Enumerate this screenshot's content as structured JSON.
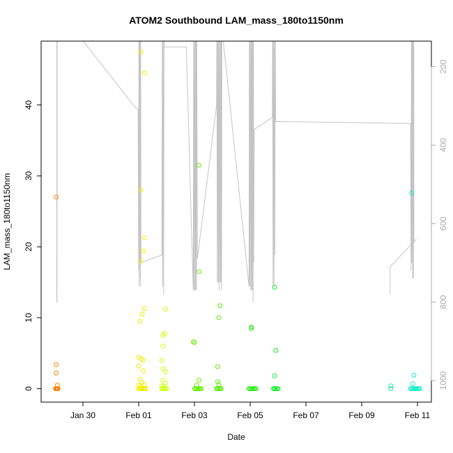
{
  "chart_data": {
    "type": "scatter",
    "title": "ATOM2 Southbound LAM_mass_180to1150nm",
    "xlabel": "Date",
    "ylabel": "LAM_mass_180to1150nm",
    "xlim": [
      "2017-01-28T12:00",
      "2017-02-11T12:00"
    ],
    "ylim": [
      -1.9,
      49
    ],
    "x_ticks": [
      {
        "date": "2017-01-30",
        "label": "Jan 30"
      },
      {
        "date": "2017-02-01",
        "label": "Feb 01"
      },
      {
        "date": "2017-02-03",
        "label": "Feb 03"
      },
      {
        "date": "2017-02-05",
        "label": "Feb 05"
      },
      {
        "date": "2017-02-07",
        "label": "Feb 07"
      },
      {
        "date": "2017-02-09",
        "label": "Feb 09"
      },
      {
        "date": "2017-02-11",
        "label": "Feb 11"
      }
    ],
    "y_ticks": [
      0,
      10,
      20,
      30,
      40
    ],
    "y2_ticks": [
      200,
      400,
      600,
      800,
      1000
    ],
    "y2_lim": [
      135,
      1055
    ],
    "y2_reversed": true,
    "y2_color": "#aaaaaa",
    "grid": false,
    "series": [
      {
        "color": "#ff7f00",
        "points": [
          [
            "2017-01-29T01:00",
            27.0
          ],
          [
            "2017-01-29T01:00",
            3.4
          ],
          [
            "2017-01-29T01:00",
            2.2
          ],
          [
            "2017-01-29T02:00",
            0.5
          ],
          [
            "2017-01-29T00:30",
            0.0
          ],
          [
            "2017-01-29T01:00",
            0.0
          ],
          [
            "2017-01-29T01:30",
            0.0
          ],
          [
            "2017-01-29T02:00",
            0.0
          ],
          [
            "2017-01-29T02:30",
            0.0
          ]
        ]
      },
      {
        "color": "#eeee00",
        "points": [
          [
            "2017-02-01T02:00",
            47.5
          ],
          [
            "2017-02-01T05:00",
            44.5
          ],
          [
            "2017-02-01T02:00",
            28.0
          ],
          [
            "2017-02-01T05:00",
            21.3
          ],
          [
            "2017-02-01T04:00",
            19.4
          ],
          [
            "2017-02-01T02:00",
            18.0
          ],
          [
            "2017-02-01T05:00",
            11.3
          ],
          [
            "2017-02-01T03:00",
            10.5
          ],
          [
            "2017-02-01T01:00",
            9.5
          ],
          [
            "2017-02-01T00:00",
            4.4
          ],
          [
            "2017-02-01T02:00",
            4.2
          ],
          [
            "2017-02-01T04:00",
            4.0
          ],
          [
            "2017-02-01T00:00",
            3.2
          ],
          [
            "2017-02-01T04:00",
            2.5
          ],
          [
            "2017-02-01T01:00",
            1.3
          ],
          [
            "2017-02-01T03:00",
            0.9
          ],
          [
            "2017-02-01T05:00",
            0.6
          ],
          [
            "2017-02-01T00:00",
            0.5
          ],
          [
            "2017-02-01T01:00",
            0.3
          ],
          [
            "2017-02-01T00:00",
            0.0
          ],
          [
            "2017-02-01T01:00",
            0.0
          ],
          [
            "2017-02-01T02:00",
            0.0
          ],
          [
            "2017-02-01T03:00",
            0.0
          ],
          [
            "2017-02-01T04:00",
            0.0
          ],
          [
            "2017-02-01T05:00",
            0.0
          ],
          [
            "2017-02-01T06:00",
            0.0
          ]
        ]
      },
      {
        "color": "#ccff00",
        "points": [
          [
            "2017-02-01T23:00",
            11.2
          ],
          [
            "2017-02-01T22:00",
            7.8
          ],
          [
            "2017-02-01T21:00",
            7.5
          ],
          [
            "2017-02-01T21:00",
            6.0
          ],
          [
            "2017-02-01T20:00",
            4.0
          ],
          [
            "2017-02-01T21:00",
            2.8
          ],
          [
            "2017-02-01T23:00",
            2.4
          ],
          [
            "2017-02-01T21:00",
            1.2
          ],
          [
            "2017-02-01T23:00",
            0.8
          ],
          [
            "2017-02-01T20:00",
            0.4
          ],
          [
            "2017-02-01T22:00",
            0.3
          ],
          [
            "2017-02-01T20:00",
            0.0
          ],
          [
            "2017-02-01T21:00",
            0.0
          ],
          [
            "2017-02-01T22:00",
            0.0
          ],
          [
            "2017-02-01T23:00",
            0.0
          ],
          [
            "2017-02-02T00:00",
            0.0
          ]
        ]
      },
      {
        "color": "#66ee00",
        "points": [
          [
            "2017-02-03T04:00",
            31.5
          ],
          [
            "2017-02-03T04:00",
            16.5
          ],
          [
            "2017-02-02T23:00",
            6.6
          ],
          [
            "2017-02-03T00:00",
            6.5
          ],
          [
            "2017-02-03T04:00",
            1.2
          ],
          [
            "2017-02-03T02:00",
            0.5
          ],
          [
            "2017-02-03T00:00",
            0.0
          ],
          [
            "2017-02-03T01:00",
            0.0
          ],
          [
            "2017-02-03T02:00",
            0.0
          ],
          [
            "2017-02-03T03:00",
            0.0
          ],
          [
            "2017-02-03T04:00",
            0.0
          ],
          [
            "2017-02-03T05:00",
            0.0
          ],
          [
            "2017-02-03T06:00",
            0.0
          ]
        ]
      },
      {
        "color": "#55ee00",
        "points": [
          [
            "2017-02-03T22:00",
            11.7
          ],
          [
            "2017-02-03T21:00",
            10.0
          ],
          [
            "2017-02-03T20:00",
            3.1
          ],
          [
            "2017-02-03T20:00",
            1.0
          ],
          [
            "2017-02-03T21:00",
            0.6
          ],
          [
            "2017-02-03T19:00",
            0.0
          ],
          [
            "2017-02-03T20:00",
            0.0
          ],
          [
            "2017-02-03T21:00",
            0.0
          ],
          [
            "2017-02-03T22:00",
            0.0
          ],
          [
            "2017-02-03T23:00",
            0.0
          ]
        ]
      },
      {
        "color": "#22ee11",
        "points": [
          [
            "2017-02-05T01:00",
            8.7
          ],
          [
            "2017-02-05T01:00",
            8.5
          ],
          [
            "2017-02-04T23:00",
            0.0
          ],
          [
            "2017-02-05T00:00",
            0.0
          ],
          [
            "2017-02-05T01:00",
            0.0
          ],
          [
            "2017-02-05T02:00",
            0.0
          ],
          [
            "2017-02-05T03:00",
            0.0
          ],
          [
            "2017-02-05T04:00",
            0.0
          ],
          [
            "2017-02-05T05:00",
            0.0
          ]
        ]
      },
      {
        "color": "#11ee22",
        "points": [
          [
            "2017-02-05T21:00",
            14.3
          ],
          [
            "2017-02-05T22:00",
            5.4
          ],
          [
            "2017-02-05T21:00",
            1.8
          ],
          [
            "2017-02-05T20:00",
            0.0
          ],
          [
            "2017-02-05T21:00",
            0.0
          ],
          [
            "2017-02-05T22:00",
            0.0
          ],
          [
            "2017-02-05T23:00",
            0.0
          ],
          [
            "2017-02-06T00:00",
            0.0
          ]
        ]
      },
      {
        "color": "#11ee99",
        "points": [
          [
            "2017-02-10T01:00",
            0.4
          ],
          [
            "2017-02-10T01:00",
            0.0
          ]
        ]
      },
      {
        "color": "#11eecc",
        "points": [
          [
            "2017-02-10T19:00",
            27.6
          ],
          [
            "2017-02-10T21:00",
            1.9
          ],
          [
            "2017-02-10T20:00",
            0.7
          ],
          [
            "2017-02-10T18:00",
            0.0
          ],
          [
            "2017-02-10T19:00",
            0.0
          ],
          [
            "2017-02-10T20:00",
            0.0
          ],
          [
            "2017-02-10T21:00",
            0.0
          ],
          [
            "2017-02-10T22:00",
            0.0
          ],
          [
            "2017-02-10T23:00",
            0.0
          ],
          [
            "2017-02-11T00:00",
            0.0
          ],
          [
            "2017-02-11T01:00",
            0.0
          ],
          [
            "2017-02-11T02:00",
            0.0
          ]
        ]
      }
    ],
    "secondary_line": {
      "color": "#c4c4c4",
      "axis": "y2",
      "points": [
        [
          "2017-01-29T01:30",
          100
        ],
        [
          "2017-01-29T01:30",
          800
        ],
        [
          "2017-01-29T01:42",
          800
        ],
        [
          "2017-01-29T01:48",
          100
        ],
        [
          "2017-01-29T15:00",
          100
        ],
        [
          "2017-01-31T20:00",
          300
        ],
        [
          "2017-01-31T23:30",
          310
        ],
        [
          "2017-02-01T00:00",
          720
        ],
        [
          "2017-02-01T00:10",
          100
        ],
        [
          "2017-02-01T00:20",
          760
        ],
        [
          "2017-02-01T00:30",
          100
        ],
        [
          "2017-02-01T00:40",
          740
        ],
        [
          "2017-02-01T00:50",
          100
        ],
        [
          "2017-02-01T01:00",
          700
        ],
        [
          "2017-02-01T01:10",
          100
        ],
        [
          "2017-02-01T01:30",
          760
        ],
        [
          "2017-02-01T01:40",
          100
        ],
        [
          "2017-02-01T02:00",
          700
        ],
        [
          "2017-02-01T20:00",
          680
        ],
        [
          "2017-02-01T20:20",
          100
        ],
        [
          "2017-02-01T20:40",
          760
        ],
        [
          "2017-02-01T21:00",
          100
        ],
        [
          "2017-02-01T21:30",
          780
        ],
        [
          "2017-02-01T21:50",
          100
        ],
        [
          "2017-02-01T22:00",
          150
        ],
        [
          "2017-02-02T17:00",
          150
        ],
        [
          "2017-02-02T23:00",
          770
        ],
        [
          "2017-02-02T23:20",
          100
        ],
        [
          "2017-02-02T23:40",
          770
        ],
        [
          "2017-02-03T00:00",
          100
        ],
        [
          "2017-02-03T00:30",
          770
        ],
        [
          "2017-02-03T00:50",
          100
        ],
        [
          "2017-02-03T01:00",
          770
        ],
        [
          "2017-02-03T01:20",
          100
        ],
        [
          "2017-02-03T01:40",
          770
        ],
        [
          "2017-02-03T02:00",
          100
        ],
        [
          "2017-02-03T02:30",
          690
        ],
        [
          "2017-02-03T19:00",
          300
        ],
        [
          "2017-02-03T19:20",
          100
        ],
        [
          "2017-02-03T19:40",
          750
        ],
        [
          "2017-02-03T20:00",
          100
        ],
        [
          "2017-02-03T20:30",
          750
        ],
        [
          "2017-02-03T20:50",
          100
        ],
        [
          "2017-02-03T21:10",
          770
        ],
        [
          "2017-02-03T21:30",
          100
        ],
        [
          "2017-02-03T22:00",
          750
        ],
        [
          "2017-02-03T22:20",
          100
        ],
        [
          "2017-02-03T22:40",
          750
        ],
        [
          "2017-02-03T23:00",
          100
        ],
        [
          "2017-02-03T23:20",
          770
        ],
        [
          "2017-02-03T23:40",
          100
        ],
        [
          "2017-02-04T23:00",
          760
        ],
        [
          "2017-02-04T23:20",
          100
        ],
        [
          "2017-02-04T23:40",
          760
        ],
        [
          "2017-02-05T00:00",
          100
        ],
        [
          "2017-02-05T00:30",
          770
        ],
        [
          "2017-02-05T00:50",
          100
        ],
        [
          "2017-02-05T01:10",
          770
        ],
        [
          "2017-02-05T01:30",
          100
        ],
        [
          "2017-02-05T01:50",
          770
        ],
        [
          "2017-02-05T02:10",
          100
        ],
        [
          "2017-02-05T02:30",
          800
        ],
        [
          "2017-02-05T02:50",
          100
        ],
        [
          "2017-02-05T03:00",
          700
        ],
        [
          "2017-02-05T03:30",
          360
        ],
        [
          "2017-02-05T19:00",
          330
        ],
        [
          "2017-02-05T19:20",
          100
        ],
        [
          "2017-02-05T19:40",
          760
        ],
        [
          "2017-02-05T20:00",
          100
        ],
        [
          "2017-02-05T20:30",
          760
        ],
        [
          "2017-02-05T20:50",
          100
        ],
        [
          "2017-02-05T21:10",
          680
        ],
        [
          "2017-02-05T21:30",
          100
        ],
        [
          "2017-02-05T22:00",
          340
        ],
        [
          "2017-02-10T18:00",
          345
        ],
        [
          "2017-02-10T18:30",
          720
        ],
        [
          "2017-02-10T18:50",
          100
        ],
        [
          "2017-02-10T19:10",
          700
        ],
        [
          "2017-02-10T19:30",
          100
        ],
        [
          "2017-02-10T19:50",
          740
        ],
        [
          "2017-02-10T20:10",
          100
        ],
        [
          "2017-02-10T20:30",
          740
        ],
        [
          "2017-02-10T20:50",
          100
        ],
        [
          "2017-02-10T21:00",
          650
        ]
      ]
    },
    "secondary_line_2": {
      "color": "#c4c4c4",
      "axis": "y2",
      "points": [
        [
          "2017-02-10T00:30",
          780
        ],
        [
          "2017-02-10T00:30",
          710
        ],
        [
          "2017-02-10T23:00",
          640
        ]
      ]
    }
  }
}
